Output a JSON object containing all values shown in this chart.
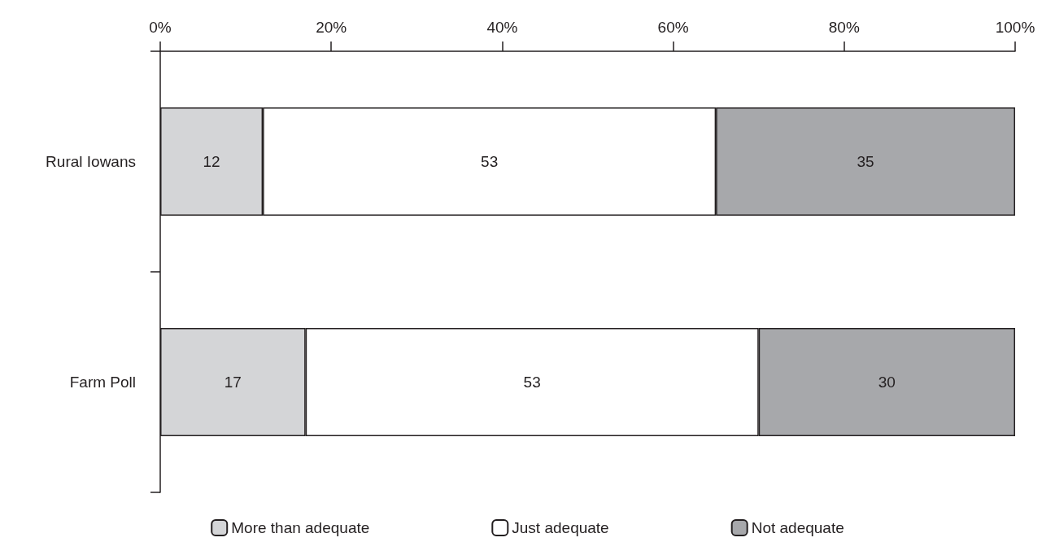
{
  "chart_data": {
    "type": "bar",
    "orientation": "horizontal",
    "stacked": true,
    "categories": [
      "Rural Iowans",
      "Farm Poll"
    ],
    "series": [
      {
        "name": "More than adequate",
        "color": "#d4d5d7",
        "values": [
          12,
          17
        ]
      },
      {
        "name": "Just adequate",
        "color": "#ffffff",
        "values": [
          53,
          53
        ]
      },
      {
        "name": "Not adequate",
        "color": "#a7a8ab",
        "values": [
          35,
          30
        ]
      }
    ],
    "xlim": [
      0,
      100
    ],
    "xticks": [
      {
        "value": 0,
        "label": "0%"
      },
      {
        "value": 20,
        "label": "20%"
      },
      {
        "value": 40,
        "label": "40%"
      },
      {
        "value": 60,
        "label": "60%"
      },
      {
        "value": 80,
        "label": "80%"
      },
      {
        "value": 100,
        "label": "100%"
      }
    ],
    "data_labels": true,
    "grid": false,
    "legend": "bottom"
  }
}
